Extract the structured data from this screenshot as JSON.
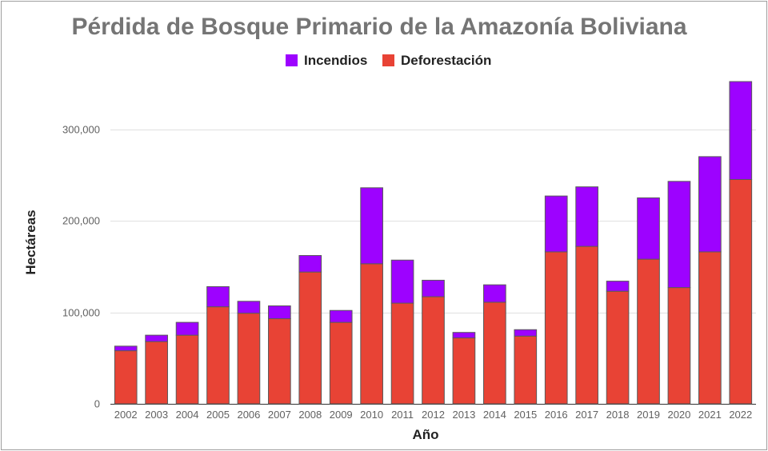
{
  "chart_data": {
    "type": "bar",
    "stacked": true,
    "title": "Pérdida de Bosque Primario de la Amazonía Boliviana",
    "xlabel": "Año",
    "ylabel": "Hectáreas",
    "ylim": [
      0,
      360000
    ],
    "yticks": [
      0,
      100000,
      200000,
      300000
    ],
    "ytick_labels": [
      "0",
      "100,000",
      "200,000",
      "300,000"
    ],
    "grid": true,
    "legend_position": "top",
    "categories": [
      "2002",
      "2003",
      "2004",
      "2005",
      "2006",
      "2007",
      "2008",
      "2009",
      "2010",
      "2011",
      "2012",
      "2013",
      "2014",
      "2015",
      "2016",
      "2017",
      "2018",
      "2019",
      "2020",
      "2021",
      "2022"
    ],
    "series": [
      {
        "name": "Deforestación",
        "color": "#e84335",
        "values": [
          58000,
          68000,
          75000,
          106000,
          99000,
          93000,
          144000,
          89000,
          153000,
          110000,
          117000,
          72000,
          111000,
          74000,
          166000,
          172000,
          123000,
          158000,
          127000,
          166000,
          245000
        ]
      },
      {
        "name": "Incendios",
        "color": "#9d02ff",
        "values": [
          5000,
          7000,
          14000,
          22000,
          13000,
          14000,
          18000,
          13000,
          83000,
          47000,
          18000,
          6000,
          19000,
          7000,
          61000,
          65000,
          11000,
          67000,
          116000,
          104000,
          107000
        ]
      }
    ]
  }
}
